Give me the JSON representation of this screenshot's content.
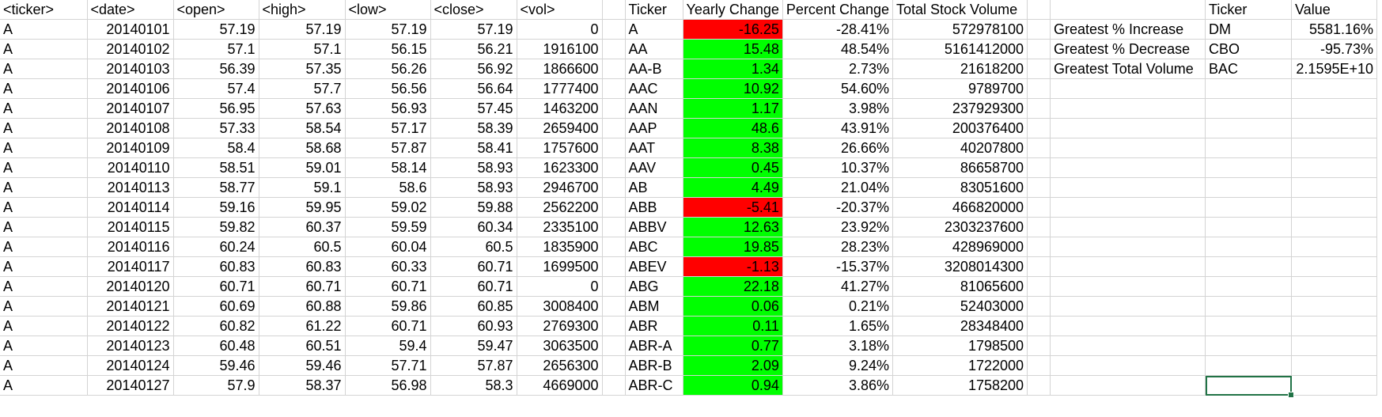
{
  "headers": {
    "raw": [
      "<ticker>",
      "<date>",
      "<open>",
      "<high>",
      "<low>",
      "<close>",
      "<vol>"
    ],
    "summary": [
      "Ticker",
      "Yearly Change",
      "Percent Change",
      "Total Stock Volume"
    ],
    "greatest": [
      "Ticker",
      "Value"
    ]
  },
  "raw_rows": [
    [
      "A",
      "20140101",
      "57.19",
      "57.19",
      "57.19",
      "57.19",
      "0"
    ],
    [
      "A",
      "20140102",
      "57.1",
      "57.1",
      "56.15",
      "56.21",
      "1916100"
    ],
    [
      "A",
      "20140103",
      "56.39",
      "57.35",
      "56.26",
      "56.92",
      "1866600"
    ],
    [
      "A",
      "20140106",
      "57.4",
      "57.7",
      "56.56",
      "56.64",
      "1777400"
    ],
    [
      "A",
      "20140107",
      "56.95",
      "57.63",
      "56.93",
      "57.45",
      "1463200"
    ],
    [
      "A",
      "20140108",
      "57.33",
      "58.54",
      "57.17",
      "58.39",
      "2659400"
    ],
    [
      "A",
      "20140109",
      "58.4",
      "58.68",
      "57.87",
      "58.41",
      "1757600"
    ],
    [
      "A",
      "20140110",
      "58.51",
      "59.01",
      "58.14",
      "58.93",
      "1623300"
    ],
    [
      "A",
      "20140113",
      "58.77",
      "59.1",
      "58.6",
      "58.93",
      "2946700"
    ],
    [
      "A",
      "20140114",
      "59.16",
      "59.95",
      "59.02",
      "59.88",
      "2562200"
    ],
    [
      "A",
      "20140115",
      "59.82",
      "60.37",
      "59.59",
      "60.34",
      "2335100"
    ],
    [
      "A",
      "20140116",
      "60.24",
      "60.5",
      "60.04",
      "60.5",
      "1835900"
    ],
    [
      "A",
      "20140117",
      "60.83",
      "60.83",
      "60.33",
      "60.71",
      "1699500"
    ],
    [
      "A",
      "20140120",
      "60.71",
      "60.71",
      "60.71",
      "60.71",
      "0"
    ],
    [
      "A",
      "20140121",
      "60.69",
      "60.88",
      "59.86",
      "60.85",
      "3008400"
    ],
    [
      "A",
      "20140122",
      "60.82",
      "61.22",
      "60.71",
      "60.93",
      "2769300"
    ],
    [
      "A",
      "20140123",
      "60.48",
      "60.51",
      "59.4",
      "59.47",
      "3063500"
    ],
    [
      "A",
      "20140124",
      "59.46",
      "59.46",
      "57.71",
      "57.87",
      "2656300"
    ],
    [
      "A",
      "20140127",
      "57.9",
      "58.37",
      "56.98",
      "58.3",
      "4669000"
    ]
  ],
  "summary_rows": [
    [
      "A",
      "-16.25",
      "-28.41%",
      "572978100"
    ],
    [
      "AA",
      "15.48",
      "48.54%",
      "5161412000"
    ],
    [
      "AA-B",
      "1.34",
      "2.73%",
      "21618200"
    ],
    [
      "AAC",
      "10.92",
      "54.60%",
      "9789700"
    ],
    [
      "AAN",
      "1.17",
      "3.98%",
      "237929300"
    ],
    [
      "AAP",
      "48.6",
      "43.91%",
      "200376400"
    ],
    [
      "AAT",
      "8.38",
      "26.66%",
      "40207800"
    ],
    [
      "AAV",
      "0.45",
      "10.37%",
      "86658700"
    ],
    [
      "AB",
      "4.49",
      "21.04%",
      "83051600"
    ],
    [
      "ABB",
      "-5.41",
      "-20.37%",
      "466820000"
    ],
    [
      "ABBV",
      "12.63",
      "23.92%",
      "2303237600"
    ],
    [
      "ABC",
      "19.85",
      "28.23%",
      "428969000"
    ],
    [
      "ABEV",
      "-1.13",
      "-15.37%",
      "3208014300"
    ],
    [
      "ABG",
      "22.18",
      "41.27%",
      "81065600"
    ],
    [
      "ABM",
      "0.06",
      "0.21%",
      "52403000"
    ],
    [
      "ABR",
      "0.11",
      "1.65%",
      "28348400"
    ],
    [
      "ABR-A",
      "0.77",
      "3.18%",
      "1798500"
    ],
    [
      "ABR-B",
      "2.09",
      "9.24%",
      "1722000"
    ],
    [
      "ABR-C",
      "0.94",
      "3.86%",
      "1758200"
    ]
  ],
  "greatest_rows": [
    [
      "Greatest % Increase",
      "DM",
      "5581.16%"
    ],
    [
      "Greatest % Decrease",
      "CBO",
      "-95.73%"
    ],
    [
      "Greatest Total Volume",
      "BAC",
      "2.1595E+10"
    ]
  ],
  "colors": {
    "positive": "#00ff00",
    "negative": "#ff0000",
    "gridline": "#d4d4d4",
    "selection": "#217346"
  }
}
